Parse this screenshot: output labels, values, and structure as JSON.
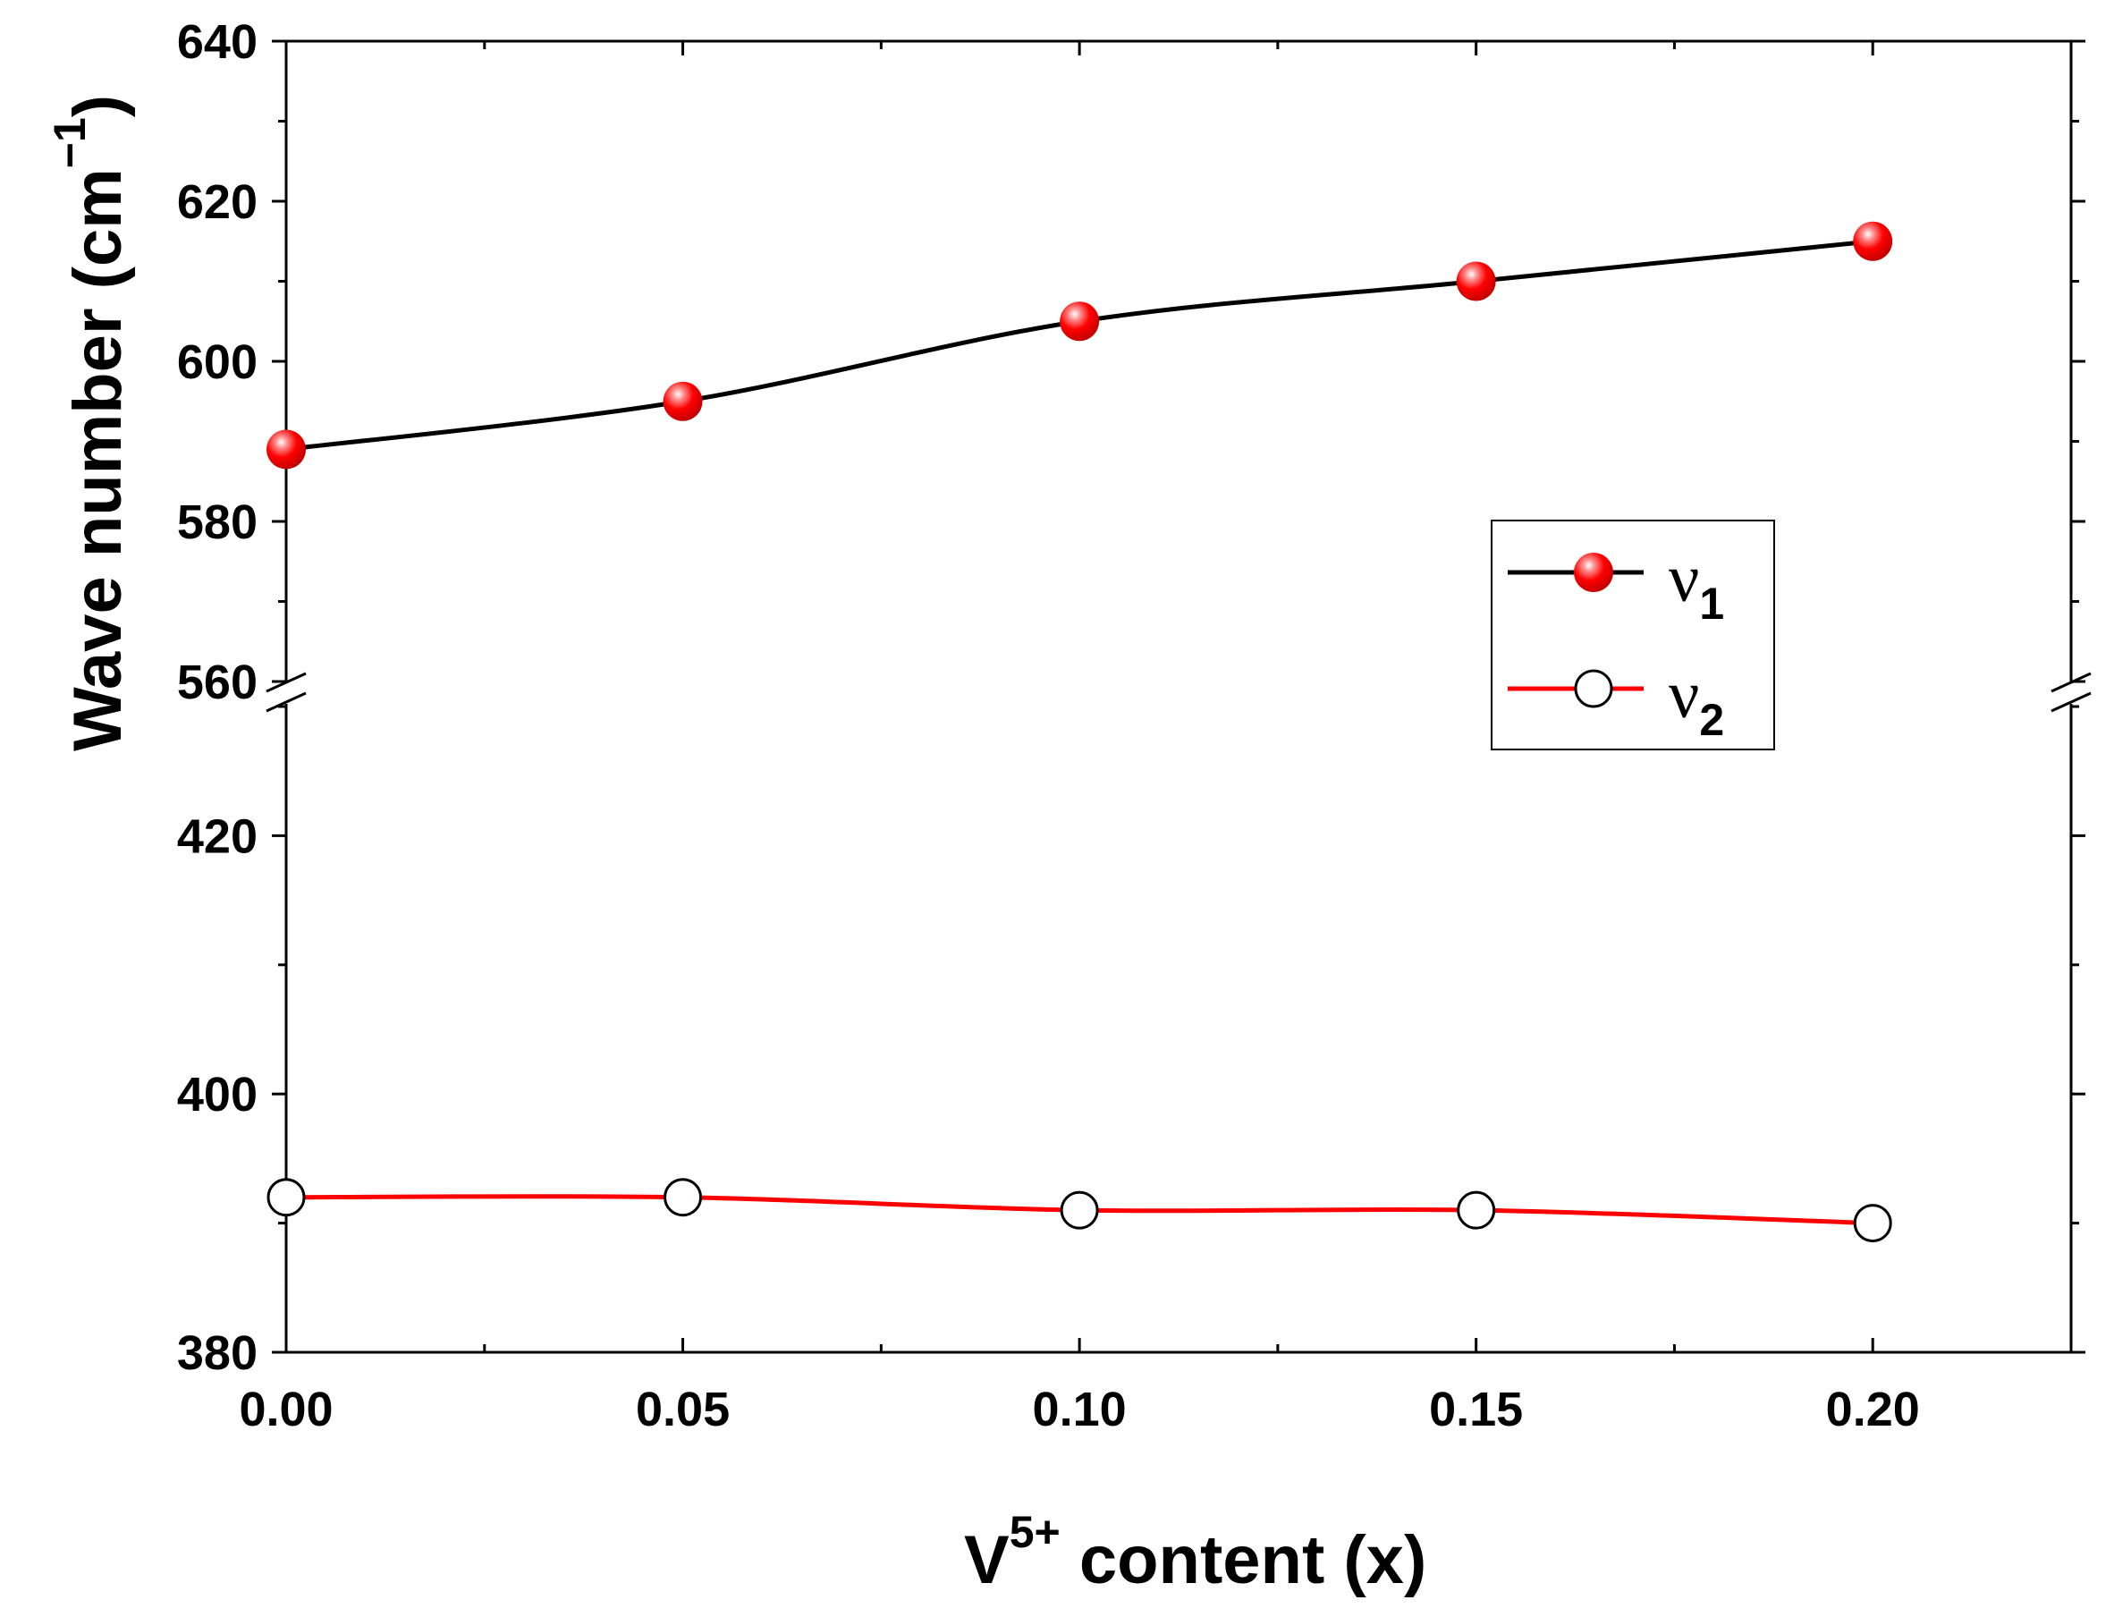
{
  "chart_data": {
    "type": "line",
    "xlabel_main": "V",
    "xlabel_sup": "5+",
    "xlabel_rest": " content (x)",
    "ylabel_main": "Wave number (cm",
    "ylabel_sup": "−1",
    "ylabel_close": ")",
    "xlim": [
      0,
      0.225
    ],
    "x_ticks": [
      0.0,
      0.05,
      0.1,
      0.15,
      0.2
    ],
    "x_tick_labels": [
      "0.00",
      "0.05",
      "0.10",
      "0.15",
      "0.20"
    ],
    "y_axis_break": true,
    "y_segments": [
      {
        "range": [
          380,
          430
        ],
        "ticks": [
          380,
          400,
          420
        ],
        "tick_labels": [
          "380",
          "400",
          "420"
        ]
      },
      {
        "range": [
          560,
          640
        ],
        "ticks": [
          560,
          580,
          600,
          620,
          640
        ],
        "tick_labels": [
          "560",
          "580",
          "600",
          "620",
          "640"
        ]
      }
    ],
    "x": [
      0.0,
      0.05,
      0.1,
      0.15,
      0.2
    ],
    "series": [
      {
        "name": "ν1",
        "name_base": "ν",
        "name_sub": "1",
        "values": [
          589,
          595,
          605,
          610,
          615
        ],
        "line_color": "#000000",
        "marker": "filled-circle",
        "marker_color": "#ff0000"
      },
      {
        "name": "ν2",
        "name_base": "ν",
        "name_sub": "2",
        "values": [
          392,
          392,
          391,
          391,
          390
        ],
        "line_color": "#ff0000",
        "marker": "open-circle",
        "marker_color": "#ffffff"
      }
    ],
    "legend_position": "right-middle",
    "grid": false
  }
}
